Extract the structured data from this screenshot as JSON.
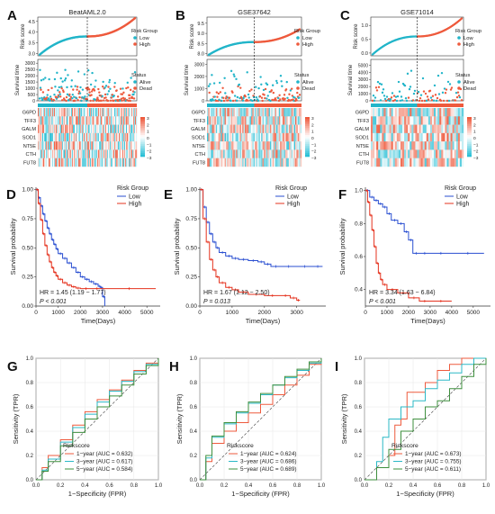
{
  "colors": {
    "low": "#22b5c9",
    "high": "#ee5a3d",
    "km_low": "#2a4fd1",
    "km_high": "#e5331f",
    "roc1": "#ee5a3d",
    "roc3": "#2bb8c6",
    "roc5": "#3e8f3e",
    "heat_low": "#2cc0d6",
    "heat_mid": "#ffffff",
    "heat_high": "#ee5a3d"
  },
  "chart_data": [
    {
      "type": "risk_score_panel",
      "panel": "A",
      "title": "BeatAML2.0",
      "risk_score": {
        "ylabel": "Risk score",
        "yticks": [
          "3.0",
          "3.5",
          "4.0",
          "4.5"
        ],
        "ylim": [
          2.9,
          4.7
        ],
        "legend_title": "Risk Group",
        "legend": [
          "Low",
          "High"
        ],
        "n": 220,
        "split_fraction": 0.5,
        "start": 2.95,
        "end": 4.65
      },
      "survival_time": {
        "ylabel": "Survival time",
        "yticks": [
          "0",
          "500",
          "1000",
          "1500",
          "2000",
          "2500",
          "3000"
        ],
        "ylim": [
          0,
          3300
        ],
        "legend_title": "Status",
        "legend": [
          "Alive",
          "Dead"
        ]
      },
      "heatmap": {
        "genes": [
          "G6PD",
          "TFF3",
          "GALM",
          "SOD1",
          "NT5E",
          "CTH",
          "FUT8"
        ],
        "scale": [
          "3",
          "2",
          "1",
          "0",
          "−1",
          "−2",
          "−3"
        ],
        "columns": 110
      }
    },
    {
      "type": "risk_score_panel",
      "panel": "B",
      "title": "GSE37642",
      "risk_score": {
        "ylabel": "Risk score",
        "yticks": [
          "8.0",
          "8.5",
          "9.0",
          "9.5"
        ],
        "ylim": [
          7.9,
          9.8
        ],
        "legend_title": "Risk Group",
        "legend": [
          "Low",
          "High"
        ],
        "n": 150,
        "split_fraction": 0.5,
        "start": 7.95,
        "end": 9.2
      },
      "survival_time": {
        "ylabel": "Survival time",
        "yticks": [
          "0",
          "1000",
          "2000",
          "3000"
        ],
        "ylim": [
          0,
          3400
        ],
        "legend_title": "Status",
        "legend": [
          "Alive",
          "Dead"
        ]
      },
      "heatmap": {
        "genes": [
          "G6PD",
          "TFF3",
          "GALM",
          "SOD1",
          "NT5E",
          "CTH",
          "FUT8"
        ],
        "scale": [
          "3",
          "2",
          "1",
          "0",
          "−1",
          "−2",
          "−3"
        ],
        "columns": 75
      }
    },
    {
      "type": "risk_score_panel",
      "panel": "C",
      "title": "GSE71014",
      "risk_score": {
        "ylabel": "Risk score",
        "yticks": [
          "0.0",
          "0.5",
          "1.0"
        ],
        "ylim": [
          -0.1,
          1.3
        ],
        "legend_title": "Risk Group",
        "legend": [
          "Low",
          "High"
        ],
        "n": 100,
        "split_fraction": 0.5,
        "start": -0.05,
        "end": 1.25
      },
      "survival_time": {
        "ylabel": "Survival time",
        "yticks": [
          "0",
          "1000",
          "2000",
          "3000",
          "4000",
          "5000"
        ],
        "ylim": [
          0,
          5800
        ],
        "legend_title": "Status",
        "legend": [
          "Alive",
          "Dead"
        ]
      },
      "heatmap": {
        "genes": [
          "G6PD",
          "TFF3",
          "GALM",
          "SOD1",
          "NT5E",
          "CTH",
          "FUT8"
        ],
        "scale": [
          "3",
          "2",
          "1",
          "0",
          "−1",
          "−2",
          "−3"
        ],
        "columns": 50
      }
    },
    {
      "type": "line",
      "panel": "D",
      "subtype": "kaplan-meier",
      "xlabel": "Time(Days)",
      "ylabel": "Survival probability",
      "xlim": [
        0,
        5600
      ],
      "ylim": [
        0,
        1.02
      ],
      "xticks": [
        0,
        1000,
        2000,
        3000,
        4000,
        5000
      ],
      "yticks": [
        "0.00",
        "0.25",
        "0.50",
        "0.75",
        "1.00"
      ],
      "legend_title": "Risk Group",
      "legend": [
        "Low",
        "High"
      ],
      "annotation_hr": "HR = 1.45 (1.19 − 1.77)",
      "annotation_p": "P < 0.001",
      "series": [
        {
          "name": "Low",
          "x": [
            0,
            100,
            200,
            300,
            400,
            500,
            600,
            700,
            800,
            900,
            1000,
            1200,
            1400,
            1600,
            1800,
            2000,
            2200,
            2400,
            2600,
            2800,
            2900,
            3000,
            3100
          ],
          "y": [
            1.0,
            0.93,
            0.86,
            0.79,
            0.73,
            0.67,
            0.62,
            0.57,
            0.53,
            0.49,
            0.45,
            0.41,
            0.37,
            0.33,
            0.29,
            0.25,
            0.23,
            0.21,
            0.19,
            0.17,
            0.16,
            0.08,
            0.0
          ]
        },
        {
          "name": "High",
          "x": [
            0,
            100,
            200,
            300,
            400,
            500,
            600,
            700,
            800,
            900,
            1000,
            1200,
            1400,
            1600,
            1800,
            2000,
            2500,
            3000,
            5400
          ],
          "y": [
            1.0,
            0.88,
            0.74,
            0.62,
            0.52,
            0.44,
            0.38,
            0.33,
            0.29,
            0.26,
            0.23,
            0.2,
            0.18,
            0.165,
            0.155,
            0.15,
            0.15,
            0.15,
            0.15
          ]
        }
      ]
    },
    {
      "type": "line",
      "panel": "E",
      "subtype": "kaplan-meier",
      "xlabel": "Time(Days)",
      "ylabel": "Survival probability",
      "xlim": [
        0,
        3900
      ],
      "ylim": [
        0,
        1.02
      ],
      "xticks": [
        0,
        1000,
        2000,
        3000
      ],
      "yticks": [
        "0.00",
        "0.25",
        "0.50",
        "0.75",
        "1.00"
      ],
      "legend_title": "Risk Group",
      "legend": [
        "Low",
        "High"
      ],
      "annotation_hr": "HR = 1.67 (1.12 − 2.50)",
      "annotation_p": "P = 0.013",
      "series": [
        {
          "name": "Low",
          "x": [
            0,
            100,
            200,
            300,
            400,
            500,
            600,
            800,
            1000,
            1200,
            1500,
            1800,
            2000,
            2200,
            2500,
            3000,
            3500,
            3800
          ],
          "y": [
            1.0,
            0.85,
            0.72,
            0.62,
            0.55,
            0.5,
            0.46,
            0.43,
            0.41,
            0.4,
            0.39,
            0.38,
            0.36,
            0.34,
            0.34,
            0.34,
            0.34,
            0.34
          ]
        },
        {
          "name": "High",
          "x": [
            0,
            100,
            200,
            300,
            400,
            500,
            600,
            800,
            1000,
            1200,
            1500,
            2000,
            2500,
            2800,
            3000,
            3100
          ],
          "y": [
            1.0,
            0.75,
            0.55,
            0.4,
            0.31,
            0.25,
            0.2,
            0.16,
            0.14,
            0.12,
            0.1,
            0.09,
            0.09,
            0.07,
            0.05,
            0.05
          ]
        }
      ]
    },
    {
      "type": "line",
      "panel": "F",
      "subtype": "kaplan-meier",
      "xlabel": "Time(Days)",
      "ylabel": "Survival probability",
      "xlim": [
        0,
        5800
      ],
      "ylim": [
        0.3,
        1.02
      ],
      "xticks": [
        0,
        1000,
        2000,
        3000,
        4000,
        5000
      ],
      "yticks": [
        "0.4",
        "0.6",
        "0.8",
        "1.0"
      ],
      "legend_title": "Risk Group",
      "legend": [
        "Low",
        "High"
      ],
      "annotation_hr": "HR = 3.34 (1.63 − 6.84)",
      "annotation_p": "P < 0.001",
      "series": [
        {
          "name": "Low",
          "x": [
            0,
            200,
            400,
            600,
            800,
            1000,
            1200,
            1500,
            1800,
            2000,
            2200,
            2500,
            3000,
            4000,
            5500
          ],
          "y": [
            1.0,
            0.96,
            0.94,
            0.92,
            0.9,
            0.86,
            0.82,
            0.8,
            0.75,
            0.7,
            0.62,
            0.62,
            0.62,
            0.62,
            0.62
          ]
        },
        {
          "name": "High",
          "x": [
            0,
            100,
            200,
            300,
            400,
            500,
            600,
            700,
            800,
            1000,
            1500,
            2000,
            2500,
            3000,
            4000
          ],
          "y": [
            1.0,
            0.93,
            0.85,
            0.76,
            0.66,
            0.56,
            0.5,
            0.46,
            0.43,
            0.4,
            0.38,
            0.35,
            0.33,
            0.33,
            0.33
          ]
        }
      ]
    },
    {
      "type": "line",
      "panel": "G",
      "subtype": "roc",
      "xlabel": "1−Specificity (FPR)",
      "ylabel": "Sensitivity (TPR)",
      "xlim": [
        0,
        1
      ],
      "ylim": [
        0,
        1
      ],
      "ticks": [
        "0.0",
        "0.2",
        "0.4",
        "0.6",
        "0.8",
        "1.0"
      ],
      "legend_title": "Riskscore",
      "series": [
        {
          "name": "1−year (AUC = 0.632)",
          "x": [
            0,
            0.05,
            0.1,
            0.2,
            0.3,
            0.4,
            0.5,
            0.6,
            0.7,
            0.8,
            0.9,
            1.0
          ],
          "y": [
            0,
            0.1,
            0.2,
            0.33,
            0.45,
            0.56,
            0.66,
            0.74,
            0.82,
            0.9,
            0.96,
            1.0
          ]
        },
        {
          "name": "3−year (AUC = 0.617)",
          "x": [
            0,
            0.05,
            0.1,
            0.2,
            0.3,
            0.4,
            0.5,
            0.6,
            0.7,
            0.8,
            0.9,
            1.0
          ],
          "y": [
            0,
            0.08,
            0.17,
            0.31,
            0.43,
            0.54,
            0.64,
            0.73,
            0.81,
            0.89,
            0.95,
            1.0
          ]
        },
        {
          "name": "5−year (AUC = 0.584)",
          "x": [
            0,
            0.05,
            0.1,
            0.2,
            0.3,
            0.4,
            0.5,
            0.6,
            0.7,
            0.8,
            0.9,
            1.0
          ],
          "y": [
            0,
            0.07,
            0.15,
            0.28,
            0.39,
            0.5,
            0.6,
            0.69,
            0.78,
            0.87,
            0.94,
            1.0
          ]
        }
      ]
    },
    {
      "type": "line",
      "panel": "H",
      "subtype": "roc",
      "xlabel": "1−Specificity (FPR)",
      "ylabel": "Sensitivity (TPR)",
      "xlim": [
        0,
        1
      ],
      "ylim": [
        0,
        1
      ],
      "ticks": [
        "0.0",
        "0.2",
        "0.4",
        "0.6",
        "0.8",
        "1.0"
      ],
      "legend_title": "Riskscore",
      "series": [
        {
          "name": "1−year (AUC = 0.624)",
          "x": [
            0,
            0.05,
            0.1,
            0.2,
            0.3,
            0.4,
            0.5,
            0.6,
            0.7,
            0.8,
            0.9,
            1.0
          ],
          "y": [
            0,
            0.15,
            0.3,
            0.4,
            0.47,
            0.55,
            0.62,
            0.7,
            0.78,
            0.86,
            0.95,
            1.0
          ]
        },
        {
          "name": "3−year (AUC = 0.686)",
          "x": [
            0,
            0.05,
            0.1,
            0.2,
            0.3,
            0.4,
            0.5,
            0.6,
            0.7,
            0.8,
            0.9,
            1.0
          ],
          "y": [
            0,
            0.18,
            0.35,
            0.46,
            0.55,
            0.63,
            0.7,
            0.78,
            0.84,
            0.9,
            0.96,
            1.0
          ]
        },
        {
          "name": "5−year (AUC = 0.689)",
          "x": [
            0,
            0.05,
            0.1,
            0.2,
            0.3,
            0.4,
            0.5,
            0.6,
            0.7,
            0.8,
            0.9,
            1.0
          ],
          "y": [
            0,
            0.2,
            0.36,
            0.47,
            0.56,
            0.64,
            0.71,
            0.78,
            0.85,
            0.91,
            0.97,
            1.0
          ]
        }
      ]
    },
    {
      "type": "line",
      "panel": "I",
      "subtype": "roc",
      "xlabel": "1−Specificity (FPR)",
      "ylabel": "Sensitivity (TPR)",
      "xlim": [
        0,
        1
      ],
      "ylim": [
        0,
        1
      ],
      "ticks": [
        "0.0",
        "0.2",
        "0.4",
        "0.6",
        "0.8",
        "1.0"
      ],
      "legend_title": "Riskscore",
      "series": [
        {
          "name": "1−year (AUC = 0.673)",
          "x": [
            0,
            0.1,
            0.2,
            0.25,
            0.3,
            0.35,
            0.4,
            0.5,
            0.6,
            0.7,
            0.8,
            1.0
          ],
          "y": [
            0,
            0.1,
            0.2,
            0.45,
            0.5,
            0.72,
            0.72,
            0.8,
            0.9,
            0.95,
            1.0,
            1.0
          ]
        },
        {
          "name": "3−year (AUC = 0.755)",
          "x": [
            0,
            0.1,
            0.15,
            0.2,
            0.3,
            0.4,
            0.5,
            0.6,
            0.7,
            0.8,
            0.9,
            1.0
          ],
          "y": [
            0,
            0.15,
            0.35,
            0.5,
            0.6,
            0.65,
            0.75,
            0.82,
            0.88,
            0.95,
            1.0,
            1.0
          ]
        },
        {
          "name": "5−year (AUC = 0.611)",
          "x": [
            0,
            0.1,
            0.2,
            0.3,
            0.4,
            0.5,
            0.6,
            0.7,
            0.8,
            0.9,
            1.0
          ],
          "y": [
            0,
            0.1,
            0.25,
            0.4,
            0.5,
            0.6,
            0.65,
            0.75,
            0.85,
            0.95,
            1.0
          ]
        }
      ]
    }
  ]
}
